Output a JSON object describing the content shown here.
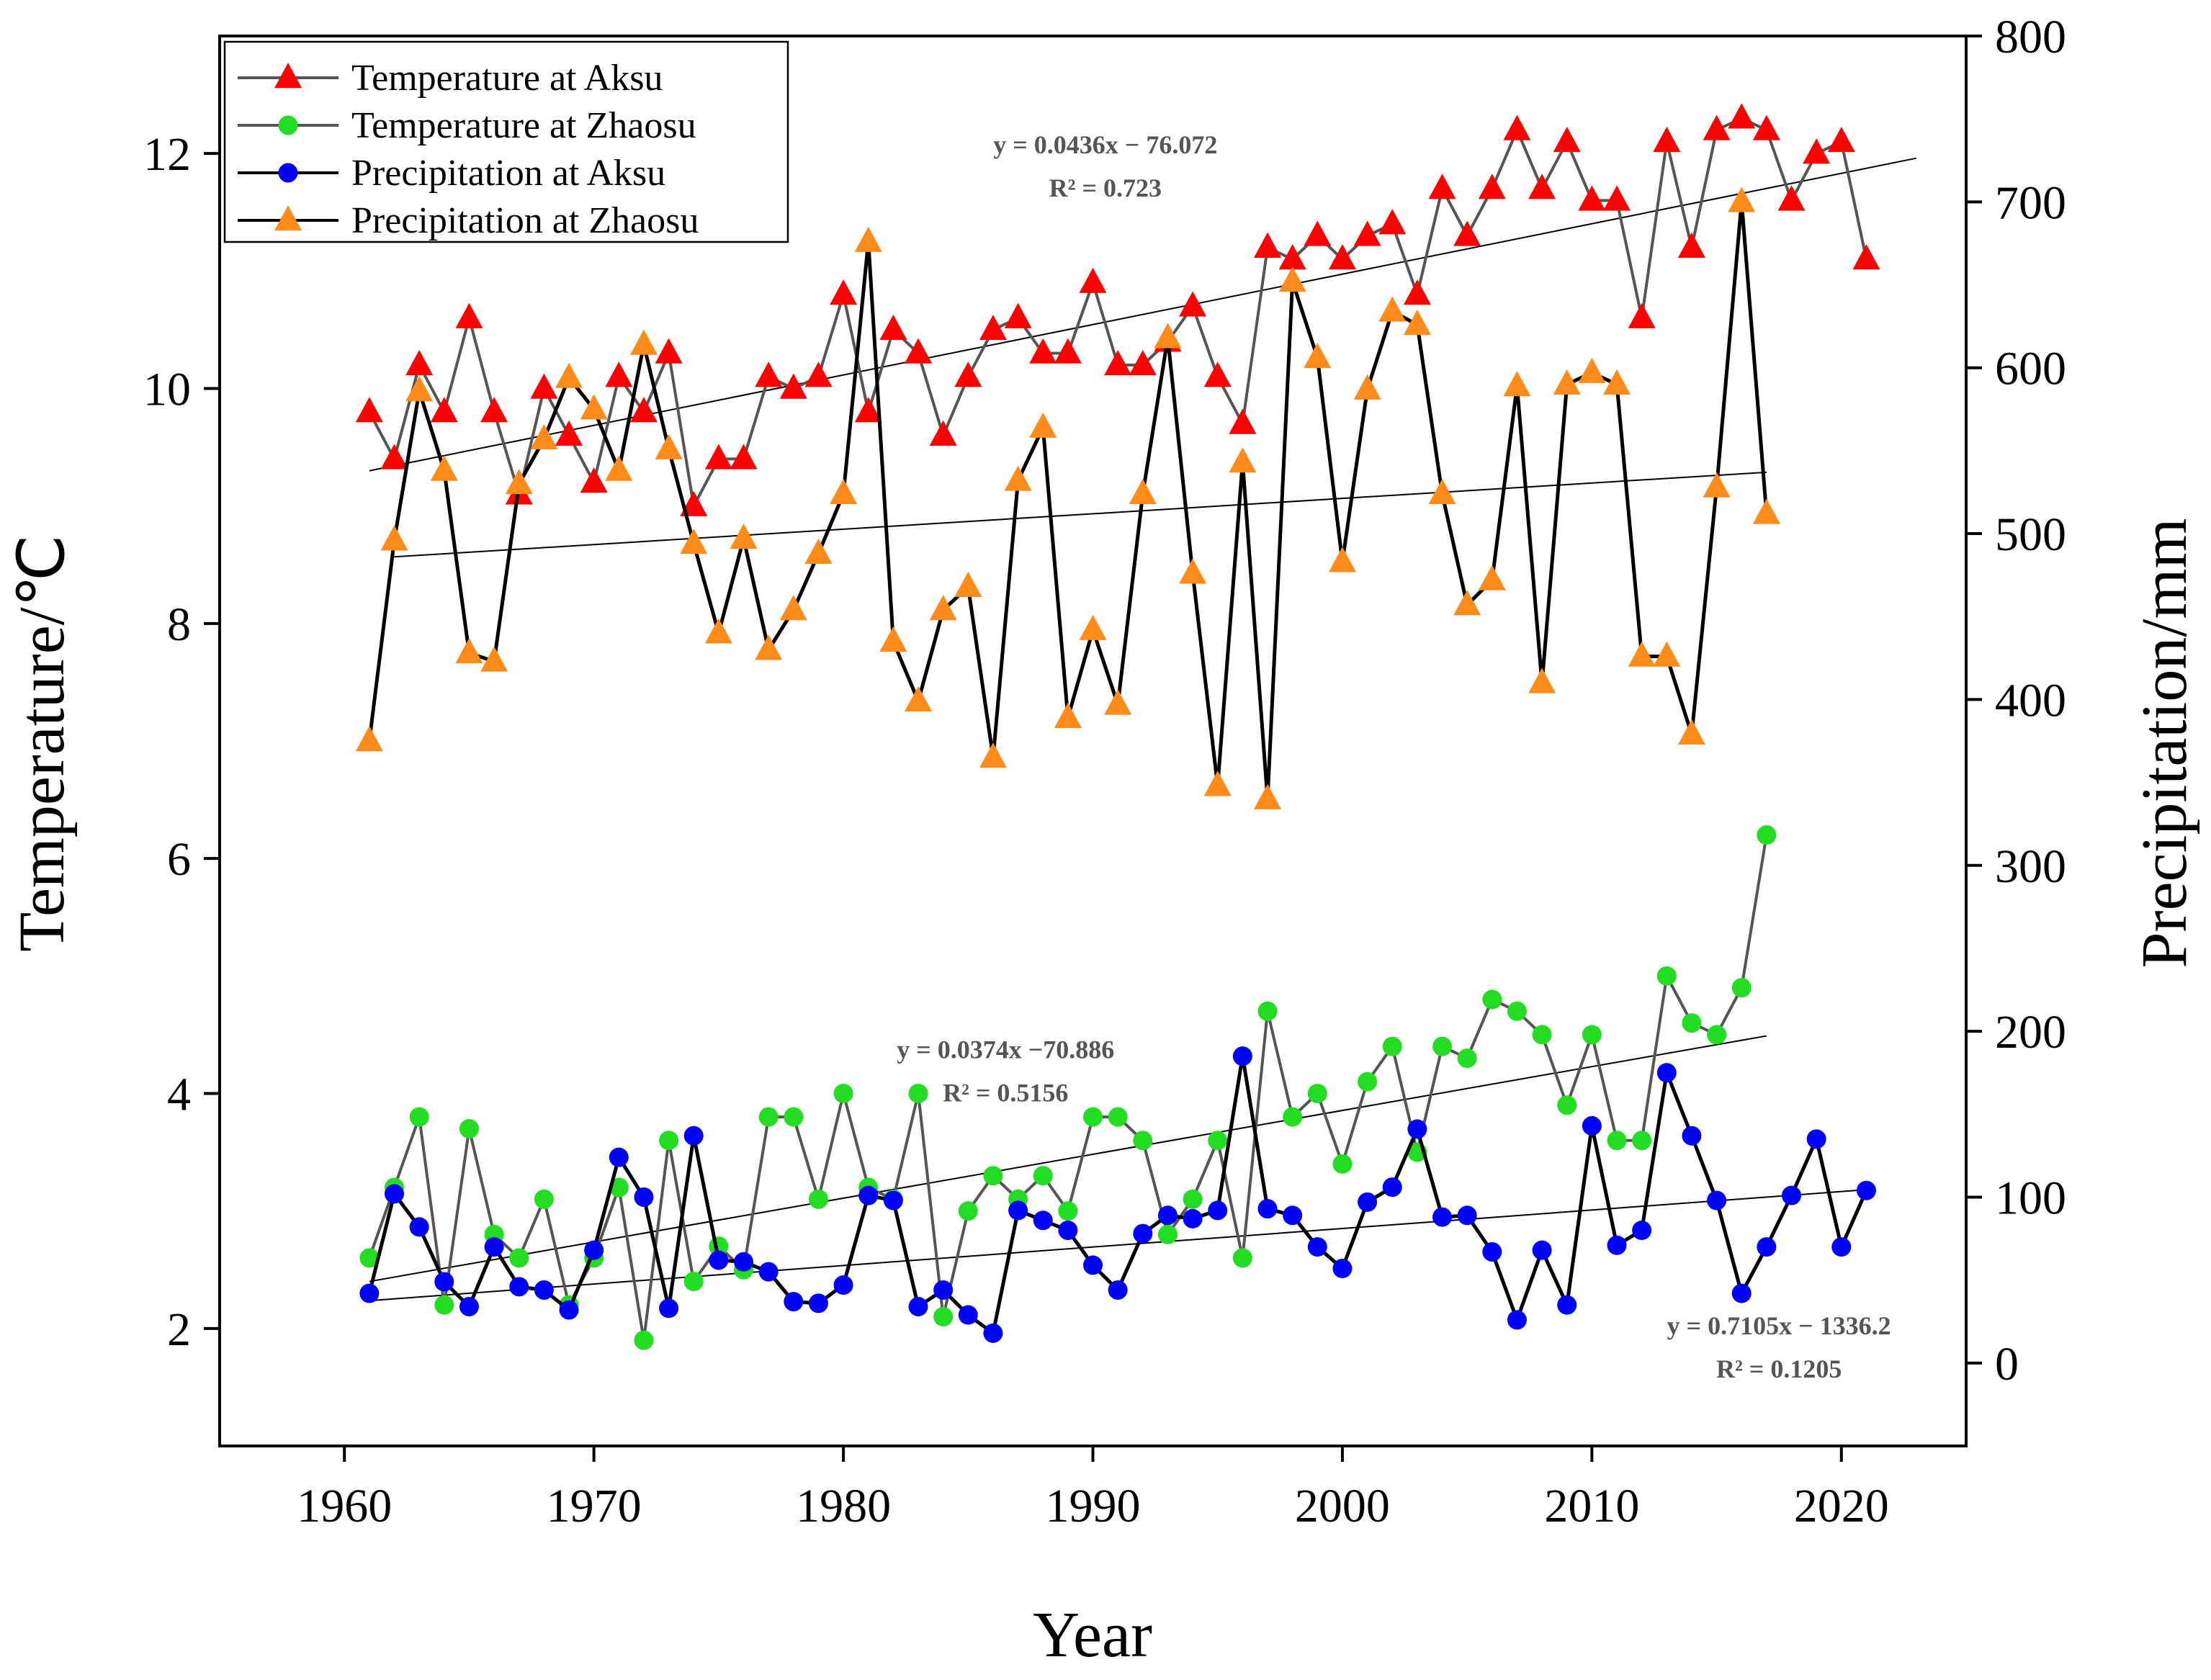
{
  "chart_data": {
    "type": "line",
    "xlabel": "Year",
    "ylabel_left": "Temperature/℃",
    "ylabel_right": "Precipitation/mm",
    "xlim": [
      1955,
      2025
    ],
    "ylim_left": [
      1,
      13
    ],
    "ylim_right": [
      -50,
      800
    ],
    "x_ticks": [
      1960,
      1970,
      1980,
      1990,
      2000,
      2010,
      2020
    ],
    "y_left_ticks": [
      2,
      4,
      6,
      8,
      10,
      12
    ],
    "y_right_ticks": [
      0,
      100,
      200,
      300,
      400,
      500,
      600,
      700,
      800
    ],
    "grid": false,
    "legend_position": "top-left",
    "series": [
      {
        "name": "Temperature at Aksu",
        "axis": "left",
        "marker": "triangle",
        "line_color": "#555555",
        "marker_color": "#ff0000",
        "x": [
          1961,
          1962,
          1963,
          1964,
          1965,
          1966,
          1967,
          1968,
          1969,
          1970,
          1971,
          1972,
          1973,
          1974,
          1975,
          1976,
          1977,
          1978,
          1979,
          1980,
          1981,
          1982,
          1983,
          1984,
          1985,
          1986,
          1987,
          1988,
          1989,
          1990,
          1991,
          1992,
          1993,
          1994,
          1995,
          1996,
          1997,
          1998,
          1999,
          2000,
          2001,
          2002,
          2003,
          2004,
          2005,
          2006,
          2007,
          2008,
          2009,
          2010,
          2011,
          2012,
          2013,
          2014,
          2015,
          2016,
          2017,
          2018,
          2019,
          2020,
          2021
        ],
        "y": [
          9.8,
          9.4,
          10.2,
          9.8,
          10.6,
          9.8,
          9.1,
          10.0,
          9.6,
          9.2,
          10.1,
          9.8,
          10.3,
          9.0,
          9.4,
          9.4,
          10.1,
          10.0,
          10.1,
          10.8,
          9.8,
          10.5,
          10.3,
          9.6,
          10.1,
          10.5,
          10.6,
          10.3,
          10.3,
          10.9,
          10.2,
          10.2,
          10.4,
          10.7,
          10.1,
          9.7,
          11.2,
          11.1,
          11.3,
          11.1,
          11.3,
          11.4,
          10.8,
          11.7,
          11.3,
          11.7,
          12.2,
          11.7,
          12.1,
          11.6,
          11.6,
          10.6,
          12.1,
          11.2,
          12.2,
          12.3,
          12.2,
          11.6,
          12.0,
          12.1,
          11.1
        ]
      },
      {
        "name": "Temperature at Zhaosu",
        "axis": "left",
        "marker": "circle",
        "line_color": "#555555",
        "marker_color": "#22dd22",
        "x": [
          1961,
          1962,
          1963,
          1964,
          1965,
          1966,
          1967,
          1968,
          1969,
          1970,
          1971,
          1972,
          1973,
          1974,
          1975,
          1976,
          1977,
          1978,
          1979,
          1980,
          1981,
          1982,
          1983,
          1984,
          1985,
          1986,
          1987,
          1988,
          1989,
          1990,
          1991,
          1992,
          1993,
          1994,
          1995,
          1996,
          1997,
          1998,
          1999,
          2000,
          2001,
          2002,
          2003,
          2004,
          2005,
          2006,
          2007,
          2008,
          2009,
          2010,
          2011,
          2012,
          2013,
          2014,
          2015,
          2016,
          2017
        ],
        "y": [
          2.6,
          3.2,
          3.8,
          2.2,
          3.7,
          2.8,
          2.6,
          3.1,
          2.2,
          2.6,
          3.2,
          1.9,
          3.6,
          2.4,
          2.7,
          2.5,
          3.8,
          3.8,
          3.1,
          4.0,
          3.2,
          3.1,
          4.0,
          2.1,
          3.0,
          3.3,
          3.1,
          3.3,
          3.0,
          3.8,
          3.8,
          3.6,
          2.8,
          3.1,
          3.6,
          2.6,
          4.7,
          3.8,
          4.0,
          3.4,
          4.1,
          4.4,
          3.5,
          4.4,
          4.3,
          4.8,
          4.7,
          4.5,
          3.9,
          4.5,
          3.6,
          3.6,
          5.0,
          4.6,
          4.5,
          4.9,
          6.2
        ]
      },
      {
        "name": "Precipitation at Aksu",
        "axis": "right",
        "marker": "circle",
        "line_color": "#000000",
        "marker_color": "#0000ff",
        "x": [
          1961,
          1962,
          1963,
          1964,
          1965,
          1966,
          1967,
          1968,
          1969,
          1970,
          1971,
          1972,
          1973,
          1974,
          1975,
          1976,
          1977,
          1978,
          1979,
          1980,
          1981,
          1982,
          1983,
          1984,
          1985,
          1986,
          1987,
          1988,
          1989,
          1990,
          1991,
          1992,
          1993,
          1994,
          1995,
          1996,
          1997,
          1998,
          1999,
          2000,
          2001,
          2002,
          2003,
          2004,
          2005,
          2006,
          2007,
          2008,
          2009,
          2010,
          2011,
          2012,
          2013,
          2014,
          2015,
          2016,
          2017,
          2018,
          2019,
          2020,
          2021
        ],
        "y": [
          42,
          102,
          82,
          49,
          34,
          70,
          46,
          44,
          32,
          68,
          124,
          100,
          33,
          137,
          62,
          61,
          55,
          37,
          36,
          47,
          101,
          98,
          34,
          44,
          29,
          18,
          92,
          86,
          80,
          59,
          44,
          78,
          89,
          87,
          92,
          185,
          93,
          89,
          70,
          57,
          97,
          106,
          141,
          88,
          89,
          67,
          26,
          68,
          35,
          143,
          71,
          80,
          175,
          137,
          98,
          42,
          70,
          101,
          135,
          70,
          104
        ]
      },
      {
        "name": "Precipitation at Zhaosu",
        "axis": "right",
        "marker": "triangle",
        "line_color": "#000000",
        "marker_color": "#ff8c1a",
        "x": [
          1961,
          1962,
          1963,
          1964,
          1965,
          1966,
          1967,
          1968,
          1969,
          1970,
          1971,
          1972,
          1973,
          1974,
          1975,
          1976,
          1977,
          1978,
          1979,
          1980,
          1981,
          1982,
          1983,
          1984,
          1985,
          1986,
          1987,
          1988,
          1989,
          1990,
          1991,
          1992,
          1993,
          1994,
          1995,
          1996,
          1997,
          1998,
          1999,
          2000,
          2001,
          2002,
          2003,
          2004,
          2005,
          2006,
          2007,
          2008,
          2009,
          2010,
          2011,
          2012,
          2013,
          2014,
          2015,
          2016,
          2017
        ],
        "y": [
          375,
          496,
          586,
          538,
          428,
          423,
          530,
          557,
          594,
          575,
          538,
          614,
          551,
          494,
          440,
          497,
          430,
          454,
          488,
          524,
          676,
          435,
          399,
          454,
          468,
          365,
          532,
          564,
          389,
          442,
          397,
          524,
          618,
          476,
          348,
          543,
          340,
          652,
          606,
          483,
          587,
          634,
          626,
          524,
          457,
          472,
          589,
          410,
          590,
          597,
          590,
          426,
          426,
          379,
          528,
          700,
          512
        ]
      }
    ],
    "trendlines": [
      {
        "series": "Temperature at Aksu",
        "axis": "left",
        "x": [
          1961,
          2023
        ],
        "y": [
          9.3,
          11.96
        ]
      },
      {
        "series": "Temperature at Zhaosu",
        "axis": "left",
        "x": [
          1961,
          2017
        ],
        "y": [
          2.4,
          4.49
        ]
      },
      {
        "series": "Precipitation at Aksu",
        "axis": "right",
        "x": [
          1961,
          2021
        ],
        "y": [
          37.6,
          104.5
        ]
      },
      {
        "series": "Precipitation at Zhaosu",
        "axis": "right",
        "x": [
          1962,
          2017
        ],
        "y": [
          486,
          537
        ]
      }
    ],
    "annotations": [
      {
        "lines": [
          "y = 0.0436x − 76.072",
          "R² = 0.723"
        ],
        "x": 1990.5,
        "y_left": 12.0,
        "axis": "left",
        "anchor": "middle"
      },
      {
        "lines": [
          "y = 0.0374x −70.886",
          "R² = 0.5156"
        ],
        "x": 1986.5,
        "y_left": 4.3,
        "axis": "left",
        "anchor": "middle"
      },
      {
        "lines": [
          "y = 0.7105x − 1336.2",
          "R² = 0.1205"
        ],
        "x": 2017.5,
        "y_left": 1.95,
        "axis": "left",
        "anchor": "middle"
      }
    ]
  }
}
